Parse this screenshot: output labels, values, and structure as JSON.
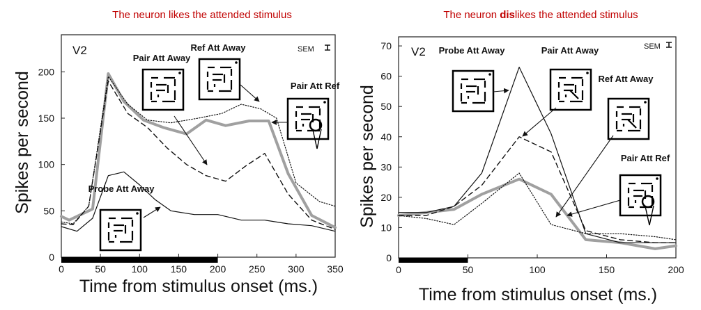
{
  "chart_data": [
    {
      "type": "line",
      "title": "The neuron likes the attended stimulus",
      "panel_label": "V2",
      "sem_label": "SEM",
      "xlabel": "Time from stimulus onset (ms.)",
      "ylabel": "Spikes per second",
      "xlim": [
        0,
        350
      ],
      "ylim": [
        0,
        240
      ],
      "xticks": [
        0,
        50,
        100,
        150,
        200,
        250,
        300,
        350
      ],
      "yticks": [
        0,
        50,
        100,
        150,
        200
      ],
      "stimulus_bar": [
        0,
        200
      ],
      "grid": false,
      "series": [
        {
          "name": "Pair Att Ref",
          "style": "gray-thick",
          "x": [
            0,
            10,
            40,
            60,
            80,
            105,
            130,
            160,
            185,
            210,
            240,
            265,
            290,
            320,
            350
          ],
          "y": [
            44,
            40,
            52,
            198,
            168,
            148,
            140,
            133,
            148,
            142,
            147,
            147,
            90,
            45,
            32
          ]
        },
        {
          "name": "Ref Att Away",
          "style": "dotted",
          "x": [
            0,
            15,
            35,
            60,
            85,
            110,
            140,
            175,
            205,
            230,
            255,
            275,
            300,
            330,
            350
          ],
          "y": [
            38,
            36,
            55,
            195,
            165,
            148,
            145,
            150,
            155,
            165,
            160,
            150,
            80,
            60,
            55
          ]
        },
        {
          "name": "Pair Att Away",
          "style": "dashed",
          "x": [
            0,
            15,
            35,
            60,
            85,
            110,
            135,
            160,
            185,
            210,
            235,
            260,
            290,
            320,
            350
          ],
          "y": [
            36,
            35,
            55,
            190,
            155,
            140,
            118,
            100,
            88,
            82,
            98,
            112,
            68,
            40,
            30
          ]
        },
        {
          "name": "Probe Att Away",
          "style": "solid-thin",
          "x": [
            0,
            20,
            40,
            60,
            80,
            100,
            120,
            140,
            170,
            200,
            230,
            260,
            290,
            320,
            350
          ],
          "y": [
            33,
            28,
            42,
            88,
            92,
            78,
            62,
            50,
            46,
            46,
            40,
            40,
            36,
            34,
            28
          ]
        }
      ],
      "annotations": [
        "Pair Att Away",
        "Ref Att Away",
        "Pair Att Ref",
        "Probe Att Away"
      ]
    },
    {
      "type": "line",
      "title_parts": [
        "The neuron ",
        "dis",
        "likes the attended stimulus"
      ],
      "panel_label": "V2",
      "sem_label": "SEM",
      "xlabel": "Time from stimulus onset (ms.)",
      "ylabel": "Spikes per second",
      "xlim": [
        0,
        200
      ],
      "ylim": [
        0,
        73
      ],
      "xticks": [
        0,
        50,
        100,
        150,
        200
      ],
      "yticks": [
        0,
        10,
        20,
        30,
        40,
        50,
        60,
        70
      ],
      "stimulus_bar": [
        0,
        50
      ],
      "grid": false,
      "series": [
        {
          "name": "Pair Att Ref",
          "style": "gray-thick",
          "x": [
            0,
            20,
            40,
            60,
            87,
            110,
            135,
            160,
            185,
            200
          ],
          "y": [
            14,
            15,
            16,
            21,
            26,
            21,
            6,
            5,
            3,
            4
          ]
        },
        {
          "name": "Probe Att Away",
          "style": "solid-thin",
          "x": [
            0,
            20,
            40,
            60,
            87,
            110,
            135,
            160,
            185,
            200
          ],
          "y": [
            15,
            15,
            17,
            28,
            63,
            41,
            8,
            5,
            5,
            5
          ]
        },
        {
          "name": "Pair Att Away",
          "style": "dashed",
          "x": [
            0,
            20,
            40,
            60,
            87,
            110,
            135,
            160,
            185,
            200
          ],
          "y": [
            14,
            14,
            17,
            24,
            40,
            35,
            9,
            6,
            5,
            5
          ]
        },
        {
          "name": "Ref Att Away",
          "style": "dotted",
          "x": [
            0,
            20,
            40,
            60,
            87,
            110,
            135,
            160,
            185,
            200
          ],
          "y": [
            14,
            13,
            11,
            18,
            28,
            11,
            8,
            8,
            7,
            6
          ]
        }
      ],
      "annotations": [
        "Probe Att Away",
        "Pair Att Away",
        "Ref Att Away",
        "Pair Att Ref"
      ]
    }
  ],
  "colors": {
    "title_red": "#c00000",
    "gray_series": "#a0a0a0",
    "ink": "#111111"
  }
}
